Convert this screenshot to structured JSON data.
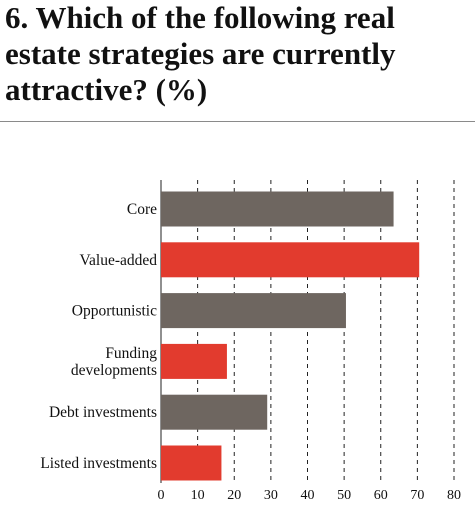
{
  "title": "6. Which of the following real estate strategies are currently attractive? (%)",
  "colors": {
    "grey": "#6e6660",
    "red": "#e23b2e"
  },
  "chart_data": {
    "type": "bar",
    "orientation": "horizontal",
    "categories": [
      "Core",
      "Value-added",
      "Opportunistic",
      "Funding developments",
      "Debt investments",
      "Listed investments"
    ],
    "category_lines": [
      [
        "Core"
      ],
      [
        "Value-added"
      ],
      [
        "Opportunistic"
      ],
      [
        "Funding",
        "developments"
      ],
      [
        "Debt investments"
      ],
      [
        "Listed investments"
      ]
    ],
    "values": [
      63.5,
      70.5,
      50.5,
      18,
      29,
      16.5
    ],
    "bar_colors": [
      "grey",
      "red",
      "grey",
      "red",
      "grey",
      "red"
    ],
    "xlim": [
      0,
      80
    ],
    "xticks": [
      0,
      10,
      20,
      30,
      40,
      50,
      60,
      70,
      80
    ],
    "grid": "vertical dashed"
  }
}
